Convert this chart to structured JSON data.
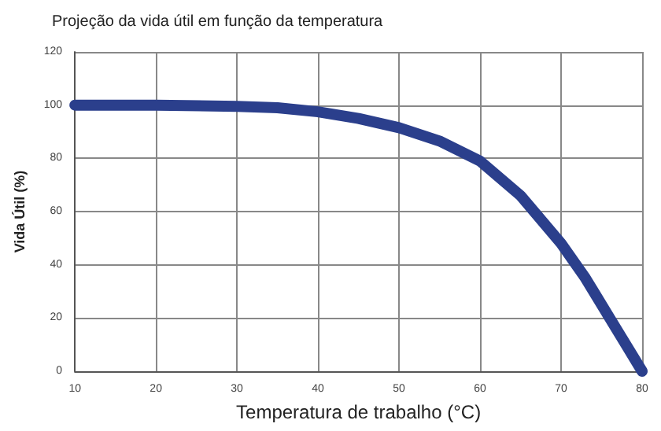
{
  "chart_data": {
    "type": "line",
    "title": "Projeção da vida útil em função da temperatura",
    "xlabel": "Temperatura de trabalho (°C)",
    "ylabel": "Vida Útil (%)",
    "x": [
      10,
      20,
      30,
      35,
      40,
      45,
      50,
      55,
      60,
      65,
      70,
      73,
      76,
      78,
      80
    ],
    "series": [
      {
        "color": "#2b3f8c",
        "values": [
          100,
          100,
          99.5,
          99,
          97.5,
          95,
          91.5,
          86.5,
          79,
          66,
          48,
          35,
          20,
          10,
          0
        ]
      }
    ],
    "xlim": [
      10,
      80
    ],
    "xticks": [
      10,
      20,
      30,
      40,
      50,
      60,
      70,
      80
    ],
    "ylim": [
      0,
      120
    ],
    "yticks": [
      0,
      20,
      40,
      60,
      80,
      100,
      120
    ],
    "grid": true,
    "line_style": "solid"
  }
}
